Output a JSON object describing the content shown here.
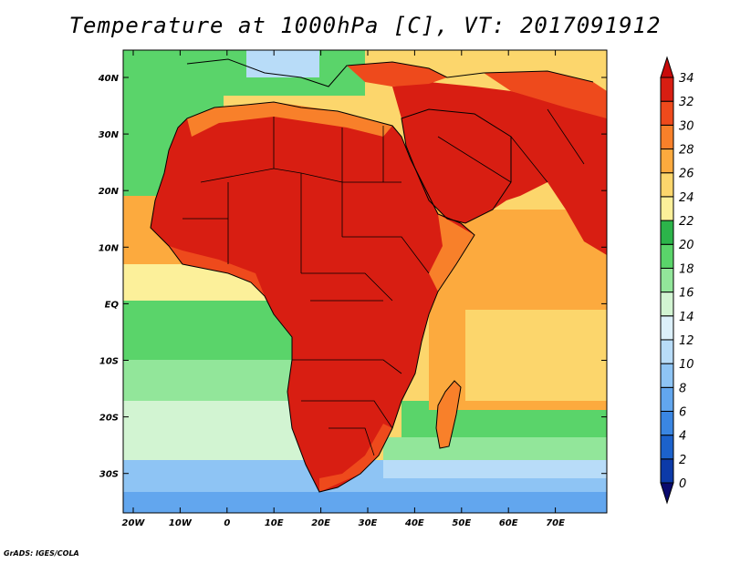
{
  "title": "Temperature at 1000hPa [C], VT: 2017091912",
  "credit": "GrADS: IGES/COLA",
  "lat_labels": [
    "40N",
    "30N",
    "20N",
    "10N",
    "EQ",
    "10S",
    "20S",
    "30S"
  ],
  "lon_labels": [
    "20W",
    "10W",
    "0",
    "10E",
    "20E",
    "30E",
    "40E",
    "50E",
    "60E",
    "70E"
  ],
  "colorbar": {
    "levels": [
      "0",
      "2",
      "4",
      "6",
      "8",
      "10",
      "12",
      "14",
      "16",
      "18",
      "20",
      "22",
      "24",
      "26",
      "28",
      "30",
      "32",
      "34"
    ],
    "colors": [
      "#0a0a6e",
      "#0c3aa8",
      "#1c62cc",
      "#3a86e2",
      "#62a6ee",
      "#8ec4f4",
      "#b8dcf8",
      "#dcf0fa",
      "#d2f4d2",
      "#92e69a",
      "#5ad46a",
      "#2cb44a",
      "#fcf09a",
      "#fcd66c",
      "#fcaa3e",
      "#f8802a",
      "#ee4a1c",
      "#d81e12",
      "#c80a0a"
    ]
  },
  "map": {
    "ocean_north_color": "#fcd66c",
    "ocean_tropical_color": "#fcaa3e",
    "ocean_south_color": "#5ad46a",
    "land_hot_color": "#d81e12",
    "land_warm_color": "#f8802a",
    "border_color": "#000000"
  }
}
